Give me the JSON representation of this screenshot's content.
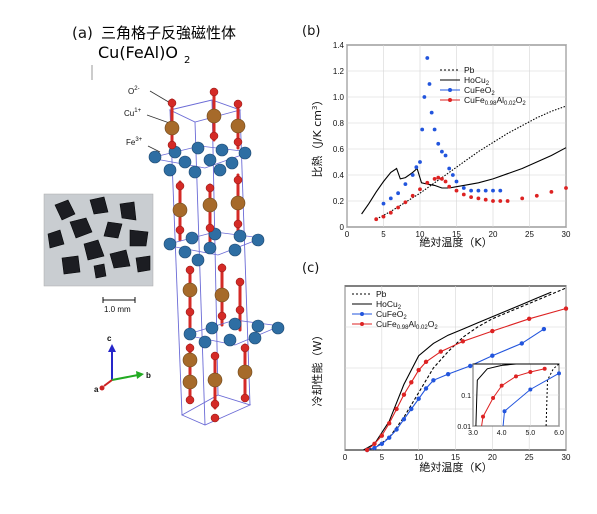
{
  "panel_a": {
    "label": "(a)",
    "title_line1": "三角格子反強磁性体",
    "title_line2": "Cu(FeAl)O",
    "title_sub": "2",
    "ions": [
      {
        "base": "O",
        "sup": "2-"
      },
      {
        "base": "Cu",
        "sup": "1+"
      },
      {
        "base": "Fe",
        "sup": "3+"
      }
    ],
    "scale_bar": "1.0 mm",
    "axes": {
      "c": "c",
      "a": "a",
      "b": "b"
    },
    "colors": {
      "O": "#d42a26",
      "Cu": "#a66a2a",
      "Fe": "#2e6ea3",
      "bond": "#6b6bd6"
    }
  },
  "chart_data": [
    {
      "id": "b",
      "type": "scatter",
      "panel_label": "(b)",
      "xlabel": "絶対温度（K）",
      "ylabel_main": "比熱（J/K cm",
      "ylabel_sup": "3",
      "ylabel_end": "）",
      "xlim": [
        0,
        30
      ],
      "ylim": [
        0,
        1.4
      ],
      "xticks": [
        "0",
        "5",
        "10",
        "15",
        "20",
        "25",
        "30"
      ],
      "yticks": [
        "0",
        "0.2",
        "0.4",
        "0.6",
        "0.8",
        "1.0",
        "1.2",
        "1.4"
      ],
      "legend_position": "top-right",
      "legend": [
        {
          "name": "Pb",
          "color": "#000000",
          "dash": true
        },
        {
          "name": "HoCu",
          "sub": "2",
          "color": "#000000"
        },
        {
          "name": "CuFeO",
          "sub": "2",
          "color": "#2255dd",
          "marker": true
        },
        {
          "name": "CuFe",
          "sub": "0.98",
          "mid": "Al",
          "sub2": "0.02",
          "mid2": "O",
          "sub3": "2",
          "color": "#dd2222",
          "marker": true
        }
      ],
      "series": [
        {
          "name": "Pb",
          "style": "dotted",
          "x": [
            4,
            6,
            8,
            10,
            12,
            14,
            16,
            18,
            20,
            22,
            24,
            26,
            28,
            30
          ],
          "y": [
            0.06,
            0.12,
            0.19,
            0.26,
            0.34,
            0.42,
            0.5,
            0.58,
            0.65,
            0.72,
            0.78,
            0.84,
            0.89,
            0.93
          ]
        },
        {
          "name": "HoCu2",
          "style": "solid",
          "x": [
            2,
            3,
            4,
            5,
            6,
            6.8,
            7.3,
            8,
            9,
            9.6,
            10.2,
            11,
            12,
            13,
            14,
            15,
            16,
            18,
            20,
            22,
            24,
            26,
            28,
            30
          ],
          "y": [
            0.1,
            0.18,
            0.27,
            0.35,
            0.42,
            0.45,
            0.37,
            0.38,
            0.42,
            0.45,
            0.34,
            0.33,
            0.32,
            0.3,
            0.3,
            0.31,
            0.32,
            0.34,
            0.37,
            0.41,
            0.45,
            0.5,
            0.55,
            0.61
          ]
        },
        {
          "name": "CuFeO2",
          "style": "markers",
          "x": [
            5,
            6,
            7,
            8,
            9,
            9.5,
            10,
            10.3,
            10.6,
            11,
            11.3,
            11.6,
            12,
            12.5,
            13,
            13.5,
            14,
            14.5,
            15,
            16,
            17,
            18,
            19,
            20,
            21
          ],
          "y": [
            0.18,
            0.22,
            0.26,
            0.33,
            0.4,
            0.46,
            0.5,
            0.75,
            1.0,
            1.3,
            1.1,
            0.88,
            0.75,
            0.64,
            0.58,
            0.55,
            0.45,
            0.4,
            0.35,
            0.3,
            0.28,
            0.28,
            0.28,
            0.28,
            0.28
          ]
        },
        {
          "name": "CuFe0.98Al0.02O2",
          "style": "markers",
          "x": [
            4,
            5,
            6,
            7,
            8,
            9,
            10,
            11,
            12,
            12.5,
            13,
            13.5,
            14,
            15,
            16,
            17,
            18,
            19,
            20,
            21,
            22,
            24,
            26,
            28,
            30
          ],
          "y": [
            0.06,
            0.08,
            0.11,
            0.15,
            0.19,
            0.24,
            0.29,
            0.34,
            0.37,
            0.38,
            0.37,
            0.35,
            0.31,
            0.28,
            0.25,
            0.23,
            0.22,
            0.21,
            0.2,
            0.2,
            0.2,
            0.22,
            0.24,
            0.27,
            0.3
          ]
        }
      ]
    },
    {
      "id": "c",
      "type": "line",
      "panel_label": "(c)",
      "xlabel": "絶対温度（K）",
      "ylabel": "冷却性能（W）",
      "xlim": [
        0,
        30
      ],
      "ylim": [
        0,
        4
      ],
      "xticks": [
        "0",
        "5",
        "10",
        "15",
        "20",
        "25",
        "30"
      ],
      "legend_position": "top-left",
      "legend": [
        {
          "name": "Pb",
          "color": "#000000",
          "dash": true
        },
        {
          "name": "HoCu",
          "sub": "2",
          "color": "#000000"
        },
        {
          "name": "CuFeO",
          "sub": "2",
          "color": "#2255dd",
          "marker": true
        },
        {
          "name": "CuFe",
          "sub": "0.98",
          "mid": "Al",
          "sub2": "0.02",
          "mid2": "O",
          "sub3": "2",
          "color": "#dd2222",
          "marker": true
        }
      ],
      "series": [
        {
          "name": "Pb",
          "style": "dashed",
          "x": [
            2.5,
            4,
            6,
            8,
            10,
            12,
            14,
            16,
            18,
            20,
            22,
            24,
            26,
            28,
            30
          ],
          "y": [
            0,
            0.05,
            0.3,
            0.8,
            1.4,
            2.0,
            2.4,
            2.75,
            3.0,
            3.2,
            3.35,
            3.5,
            3.65,
            3.8,
            3.95
          ]
        },
        {
          "name": "HoCu2",
          "style": "solid",
          "x": [
            2.5,
            4,
            6,
            8,
            10,
            12,
            14,
            16,
            18,
            20,
            22,
            24,
            26,
            28
          ],
          "y": [
            0,
            0.15,
            0.7,
            1.6,
            2.3,
            2.6,
            2.8,
            2.95,
            3.1,
            3.25,
            3.4,
            3.55,
            3.7,
            3.85
          ]
        },
        {
          "name": "CuFeO2",
          "style": "line+markers",
          "x": [
            3,
            4,
            5,
            6,
            7,
            8,
            9,
            10,
            11,
            12,
            14,
            17,
            20,
            24,
            27
          ],
          "y": [
            0,
            0.05,
            0.15,
            0.3,
            0.5,
            0.75,
            1.0,
            1.25,
            1.5,
            1.7,
            1.85,
            2.05,
            2.3,
            2.6,
            2.95
          ]
        },
        {
          "name": "CuFe0.98Al0.02O2",
          "style": "line+markers",
          "x": [
            3,
            4,
            5,
            6,
            7,
            8,
            9,
            10,
            11,
            13,
            16,
            20,
            25,
            30
          ],
          "y": [
            0,
            0.15,
            0.35,
            0.65,
            1.0,
            1.35,
            1.65,
            1.95,
            2.15,
            2.4,
            2.65,
            2.9,
            3.2,
            3.45
          ]
        }
      ],
      "inset": {
        "xlim": [
          3.0,
          6.0
        ],
        "ylim_log": [
          0.01,
          1
        ],
        "xticks": [
          "3.0",
          "4.0",
          "5.0",
          "6.0"
        ],
        "yticks": [
          "0.01",
          "0.1"
        ],
        "series": [
          {
            "name": "Pb",
            "style": "dashed",
            "x": [
              5.55,
              5.6,
              5.8,
              6.0
            ],
            "y": [
              0.01,
              0.3,
              0.7,
              1.0
            ]
          },
          {
            "name": "HoCu2",
            "style": "solid",
            "x": [
              3.1,
              3.15,
              3.5,
              4.0,
              4.5,
              5.0,
              5.5,
              6.0
            ],
            "y": [
              0.01,
              0.3,
              0.7,
              0.9,
              1.0,
              1.0,
              1.0,
              1.0
            ]
          },
          {
            "name": "CuFeO2",
            "style": "line+markers",
            "x": [
              4.05,
              4.1,
              5.0,
              6.0
            ],
            "y": [
              0.01,
              0.03,
              0.15,
              0.5
            ]
          },
          {
            "name": "CuFe0.98Al0.02O2",
            "style": "line+markers",
            "x": [
              3.3,
              3.35,
              3.7,
              4.0,
              4.5,
              5.0,
              5.5
            ],
            "y": [
              0.01,
              0.02,
              0.08,
              0.2,
              0.4,
              0.55,
              0.7
            ]
          }
        ]
      }
    }
  ]
}
